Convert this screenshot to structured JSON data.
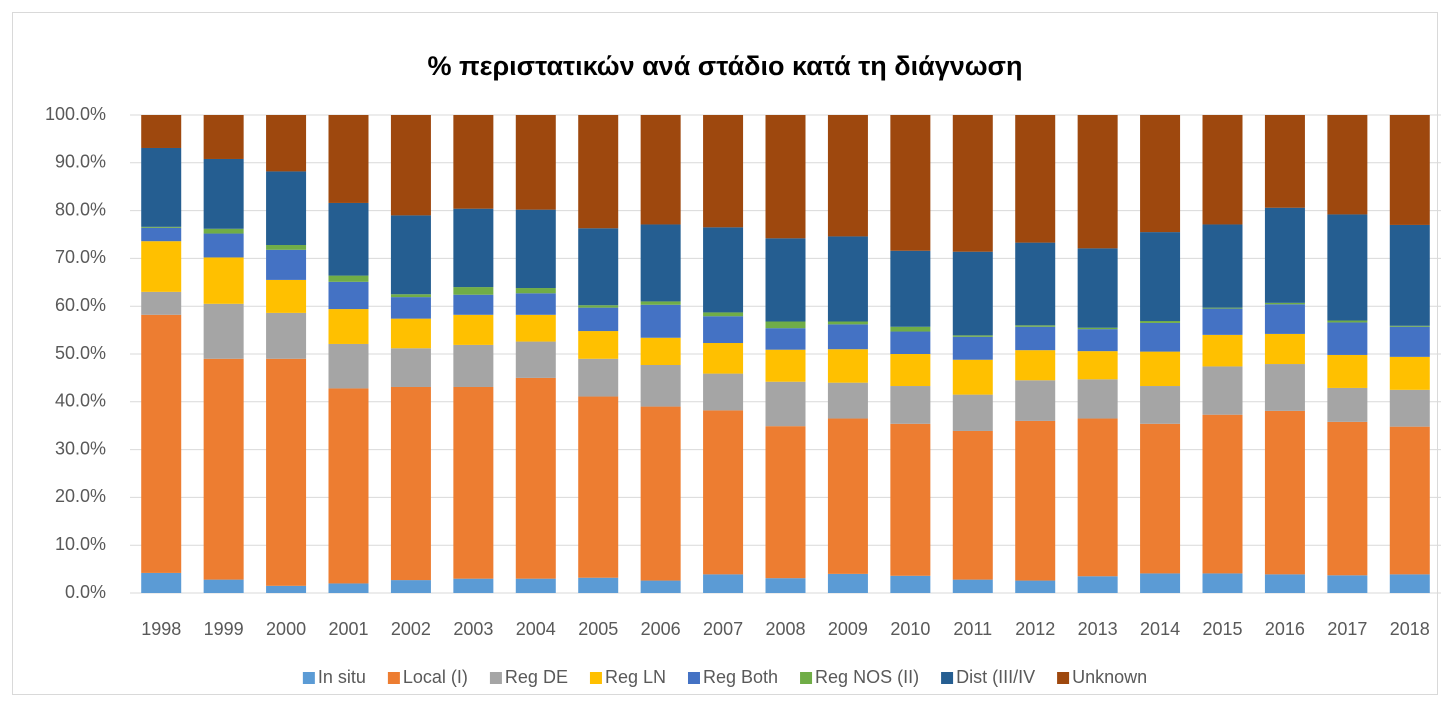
{
  "chart_data": {
    "type": "stacked_bar",
    "title": "% περιστατικών ανά στάδιο κατά τη διάγνωση",
    "categories": [
      "1998",
      "1999",
      "2000",
      "2001",
      "2002",
      "2003",
      "2004",
      "2005",
      "2006",
      "2007",
      "2008",
      "2009",
      "2010",
      "2011",
      "2012",
      "2013",
      "2014",
      "2015",
      "2016",
      "2017",
      "2018"
    ],
    "series": [
      {
        "name": "In situ",
        "color": "#5B9BD5",
        "values": [
          4.2,
          2.8,
          1.5,
          2.0,
          2.7,
          3.0,
          3.0,
          3.2,
          2.6,
          3.9,
          3.1,
          4.0,
          3.6,
          2.8,
          2.6,
          3.5,
          4.1,
          4.1,
          3.9,
          3.7,
          3.9
        ]
      },
      {
        "name": "Local (I)",
        "color": "#ED7D31",
        "values": [
          54.0,
          46.2,
          47.5,
          40.8,
          40.4,
          40.1,
          42.0,
          37.9,
          36.4,
          34.3,
          31.8,
          32.5,
          31.8,
          31.1,
          33.4,
          33.0,
          31.3,
          33.2,
          34.2,
          32.1,
          30.9
        ]
      },
      {
        "name": "Reg DE",
        "color": "#A5A5A5",
        "values": [
          4.8,
          11.5,
          9.6,
          9.3,
          8.1,
          8.8,
          7.6,
          7.9,
          8.7,
          7.7,
          9.3,
          7.5,
          7.9,
          7.6,
          8.5,
          8.2,
          7.9,
          10.1,
          9.8,
          7.1,
          7.7
        ]
      },
      {
        "name": "Reg LN",
        "color": "#FFC000",
        "values": [
          10.6,
          9.7,
          6.9,
          7.3,
          6.2,
          6.3,
          5.6,
          5.8,
          5.7,
          6.4,
          6.7,
          7.0,
          6.7,
          7.3,
          6.3,
          5.9,
          7.2,
          6.6,
          6.3,
          6.9,
          6.9
        ]
      },
      {
        "name": "Reg Both",
        "color": "#4472C4",
        "values": [
          2.8,
          5.0,
          6.3,
          5.7,
          4.5,
          4.2,
          4.5,
          4.9,
          6.9,
          5.6,
          4.5,
          5.2,
          4.7,
          4.8,
          4.9,
          4.6,
          6.0,
          5.5,
          6.2,
          6.8,
          6.3
        ]
      },
      {
        "name": "Reg NOS (II)",
        "color": "#70AD47",
        "values": [
          0.2,
          1.0,
          1.0,
          1.3,
          0.6,
          1.6,
          1.1,
          0.5,
          0.7,
          0.8,
          1.4,
          0.6,
          1.0,
          0.3,
          0.3,
          0.3,
          0.4,
          0.2,
          0.3,
          0.4,
          0.2
        ]
      },
      {
        "name": "Dist (III/IV",
        "color": "#255E91",
        "values": [
          16.5,
          14.6,
          15.4,
          15.2,
          16.5,
          16.4,
          16.4,
          16.1,
          16.1,
          17.8,
          17.4,
          17.8,
          15.9,
          17.5,
          17.3,
          16.6,
          18.6,
          17.4,
          19.9,
          22.2,
          21.1
        ]
      },
      {
        "name": "Unknown",
        "color": "#9E480E",
        "values": [
          6.9,
          9.2,
          11.8,
          18.4,
          21.0,
          19.6,
          19.8,
          23.7,
          22.9,
          23.5,
          25.8,
          25.4,
          28.4,
          28.6,
          26.7,
          27.9,
          24.5,
          22.9,
          19.4,
          20.8,
          23.0
        ]
      }
    ],
    "ylim": [
      0,
      100
    ],
    "yticks": [
      {
        "value": 0,
        "label": "0.0%"
      },
      {
        "value": 10,
        "label": "10.0%"
      },
      {
        "value": 20,
        "label": "20.0%"
      },
      {
        "value": 30,
        "label": "30.0%"
      },
      {
        "value": 40,
        "label": "40.0%"
      },
      {
        "value": 50,
        "label": "50.0%"
      },
      {
        "value": 60,
        "label": "60.0%"
      },
      {
        "value": 70,
        "label": "70.0%"
      },
      {
        "value": 80,
        "label": "80.0%"
      },
      {
        "value": 90,
        "label": "90.0%"
      },
      {
        "value": 100,
        "label": "100.0%"
      }
    ],
    "grid": true,
    "legend": "bottom"
  }
}
